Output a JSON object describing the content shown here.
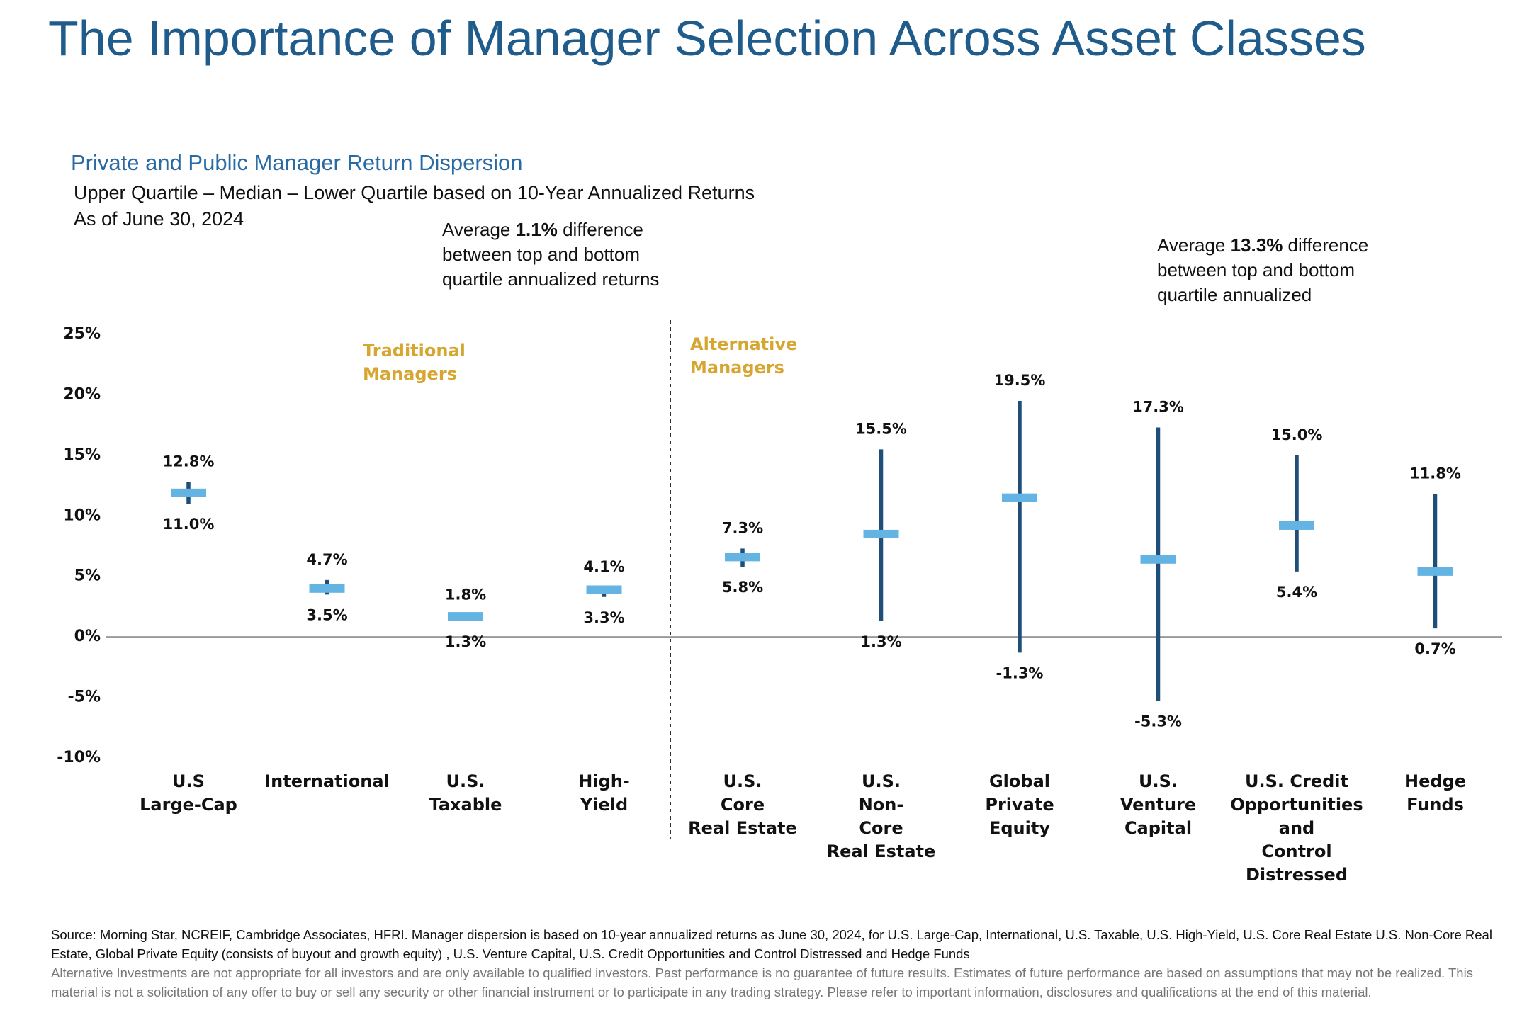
{
  "title": "The Importance of Manager Selection Across Asset Classes",
  "chart_data": {
    "type": "range",
    "subtitle": "Private and Public Manager Return Dispersion",
    "description": "Upper Quartile – Median – Lower Quartile based on 10-Year Annualized Returns",
    "date_note": "As of June 30, 2024",
    "annotations": [
      {
        "prefix": "Average ",
        "bold": "1.1%",
        "suffix": " difference between top and bottom quartile annualized returns"
      },
      {
        "prefix": "Average ",
        "bold": "13.3%",
        "suffix": " difference between top and bottom quartile annualized"
      }
    ],
    "groups": [
      {
        "lines": [
          "Traditional",
          "Managers"
        ],
        "color": "#d6a630"
      },
      {
        "lines": [
          "Alternative",
          "Managers"
        ],
        "color": "#d6a630"
      }
    ],
    "categories": [
      [
        "U.S",
        "Large-Cap"
      ],
      [
        "International"
      ],
      [
        "U.S.",
        "Taxable"
      ],
      [
        "High-",
        "Yield"
      ],
      [
        "U.S.",
        "Core",
        "Real Estate"
      ],
      [
        "U.S.",
        "Non-",
        "Core",
        "Real Estate"
      ],
      [
        "Global",
        "Private",
        "Equity"
      ],
      [
        "U.S.",
        "Venture",
        "Capital"
      ],
      [
        "U.S. Credit",
        "Opportunities",
        "and",
        "Control",
        "Distressed"
      ],
      [
        "Hedge",
        "Funds"
      ]
    ],
    "upper_quartile": {
      "color": "#1f4e79",
      "values": [
        12.8,
        4.7,
        1.8,
        4.1,
        7.3,
        15.5,
        19.5,
        17.3,
        15.0,
        11.8
      ],
      "value_labels": [
        "12.8%",
        "4.7%",
        "1.8%",
        "4.1%",
        "7.3%",
        "15.5%",
        "19.5%",
        "17.3%",
        "15.0%",
        "11.8%"
      ]
    },
    "median": {
      "color": "#63b3e3",
      "values": [
        11.9,
        4.0,
        1.7,
        3.9,
        6.6,
        8.5,
        11.5,
        6.4,
        9.2,
        5.4
      ]
    },
    "lower_quartile": {
      "color": "#1f4e79",
      "values": [
        11.0,
        3.5,
        1.3,
        3.3,
        5.8,
        1.3,
        -1.3,
        -5.3,
        5.4,
        0.7
      ],
      "value_labels": [
        "11.0%",
        "3.5%",
        "1.3%",
        "3.3%",
        "5.8%",
        "1.3%",
        "-1.3%",
        "-5.3%",
        "5.4%",
        "0.7%"
      ]
    },
    "ylim": [
      -10,
      25
    ],
    "yticks": [
      {
        "value": 25,
        "label": "25%"
      },
      {
        "value": 20,
        "label": "20%"
      },
      {
        "value": 15,
        "label": "15%"
      },
      {
        "value": 10,
        "label": "10%"
      },
      {
        "value": 5,
        "label": "5%"
      },
      {
        "value": 0,
        "label": "0%"
      },
      {
        "value": -5,
        "label": "-5%"
      },
      {
        "value": -10,
        "label": "-10%"
      }
    ]
  },
  "footnotes": {
    "source": "Source: Morning Star, NCREIF, Cambridge Associates, HFRI. Manager dispersion is based on 10-year annualized returns as June 30, 2024, for U.S. Large-Cap, International, U.S. Taxable, U.S. High-Yield, U.S. Core Real Estate U.S. Non-Core Real Estate, Global Private Equity (consists of buyout and growth equity) , U.S. Venture Capital, U.S. Credit Opportunities and Control Distressed and Hedge Funds",
    "disclaimer": "Alternative Investments are not appropriate for all investors and are only available to qualified investors. Past performance is no guarantee of future results. Estimates of future performance are based on assumptions that may not be realized. This material is not a solicitation of any offer to buy or sell any security or other financial instrument or to participate in any trading strategy. Please refer to important information, disclosures and qualifications at the end of this material."
  }
}
